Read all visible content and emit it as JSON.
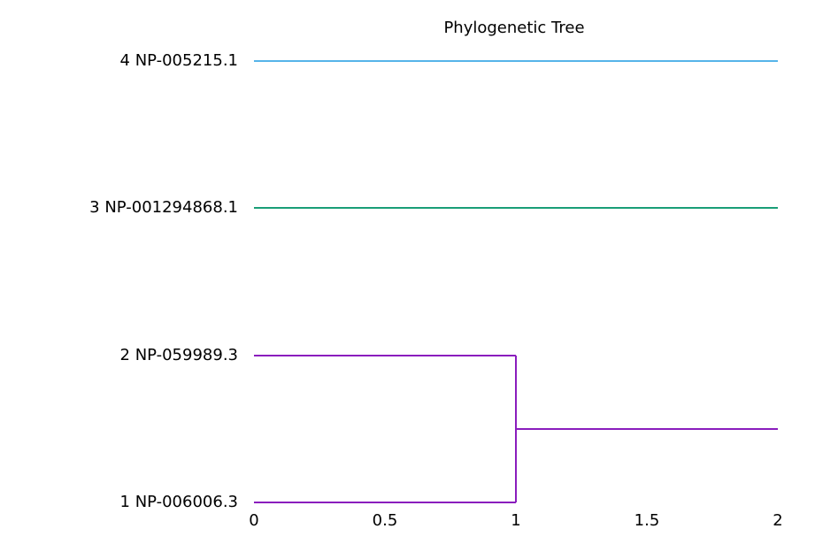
{
  "chart_data": {
    "type": "dendrogram",
    "title": "Phylogenetic Tree",
    "xlabel": "",
    "ylabel": "",
    "xlim": [
      0,
      2
    ],
    "x_ticks": [
      "0",
      "0.5",
      "1",
      "1.5",
      "2"
    ],
    "grid": false,
    "leaves": [
      {
        "label": "4 NP-005215.1",
        "order": 4,
        "color": "#56b4e9"
      },
      {
        "label": "3 NP-001294868.1",
        "order": 3,
        "color": "#1a9e77"
      },
      {
        "label": "2 NP-059989.3",
        "order": 2,
        "color": "#8a1dbd"
      },
      {
        "label": "1 NP-006006.3",
        "order": 1,
        "color": "#8a1dbd"
      }
    ],
    "branches": [
      {
        "label": "4 NP-005215.1",
        "from_x": 0,
        "to_x": 2,
        "color": "#56b4e9"
      },
      {
        "label": "3 NP-001294868.1",
        "from_x": 0,
        "to_x": 2,
        "color": "#1a9e77"
      },
      {
        "label": "2 NP-059989.3",
        "from_x": 0,
        "to_x": 1,
        "color": "#8a1dbd"
      },
      {
        "label": "1 NP-006006.3",
        "from_x": 0,
        "to_x": 1,
        "color": "#8a1dbd"
      }
    ],
    "clades": [
      {
        "members": [
          "1 NP-006006.3",
          "2 NP-059989.3"
        ],
        "join_x": 1,
        "extends_to_x": 2,
        "color": "#8a1dbd"
      }
    ]
  }
}
